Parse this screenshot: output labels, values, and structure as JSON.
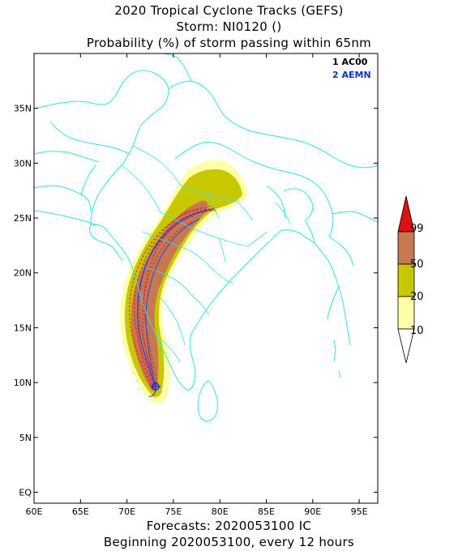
{
  "title": {
    "line1": "2020 Tropical Cyclone Tracks (GEFS)",
    "line2": "Storm: NI0120 ()",
    "line3": "Probability (%) of storm passing within 65nm"
  },
  "footer": {
    "line1": "Forecasts: 2020053100 IC",
    "line2": "Beginning 2020053100, every 12 hours"
  },
  "map": {
    "lon_range": [
      60,
      97
    ],
    "lat_range": [
      -1,
      40
    ],
    "lon_ticks": [
      "60E",
      "65E",
      "70E",
      "75E",
      "80E",
      "85E",
      "90E",
      "95E"
    ],
    "lat_ticks": [
      "EQ",
      "5N",
      "10N",
      "15N",
      "20N",
      "25N",
      "30N",
      "35N"
    ],
    "colors": {
      "coast": "#33e0e8",
      "p10": "#ffffa8",
      "p20": "#c8c800",
      "p50": "#c87850",
      "p99": "#dd1111",
      "ensemble_track": "#dd2222",
      "mean_track": "#2244ee"
    }
  },
  "legend": {
    "items": [
      {
        "num": "1",
        "label": "AC00",
        "color": "#000000"
      },
      {
        "num": "2",
        "label": "AEMN",
        "color": "#1133cc"
      }
    ]
  },
  "colorbar": {
    "labels": [
      "99",
      "50",
      "20",
      "10"
    ]
  }
}
